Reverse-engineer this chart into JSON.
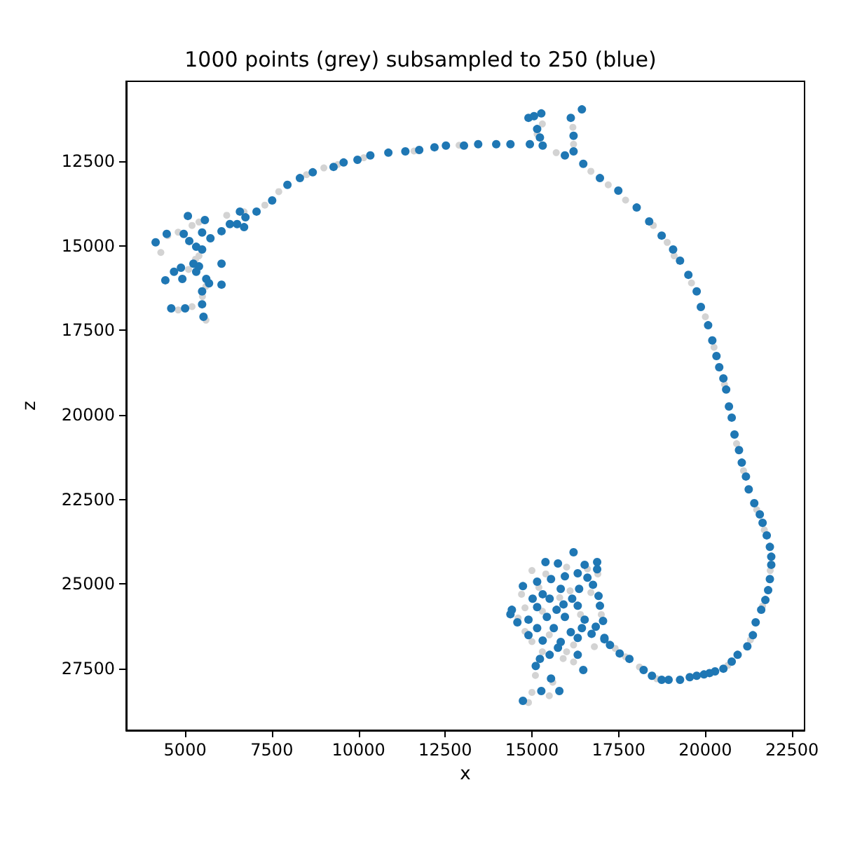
{
  "chart_data": {
    "type": "scatter",
    "title": "1000 points (grey) subsampled to 250 (blue)",
    "xlabel": "x",
    "ylabel": "z",
    "xlim": [
      3300,
      22860
    ],
    "ylim": [
      29320,
      10140
    ],
    "xticks": [
      5000,
      7500,
      10000,
      12500,
      15000,
      17500,
      20000,
      22500
    ],
    "yticks": [
      12500,
      15000,
      17500,
      20000,
      22500,
      25000,
      27500
    ],
    "marker": "circle",
    "series": [
      {
        "color": "#d3d3d3",
        "x": [
          4300,
          4500,
          4800,
          5200,
          5400,
          5300,
          5400,
          5100,
          5600,
          5500,
          5200,
          4800,
          5600,
          6200,
          6700,
          7300,
          7700,
          8500,
          9000,
          9400,
          10150,
          11600,
          12900,
          15300,
          15150,
          16180,
          16200,
          15700,
          16700,
          17200,
          17700,
          18500,
          18900,
          19100,
          19600,
          20000,
          20250,
          20550,
          20900,
          21100,
          21480,
          21700,
          21870,
          21650,
          21300,
          20650,
          18600,
          18100,
          17700,
          17400,
          15000,
          15400,
          16000,
          16600,
          16900,
          15200,
          16100,
          16700,
          14700,
          15300,
          15800,
          16400,
          17000,
          14600,
          14800,
          15500,
          16200,
          16800,
          15000,
          15300,
          15900,
          16200,
          15100,
          15600,
          15000,
          15500,
          14900,
          16000,
          14800
        ],
        "values": [
          15200,
          14700,
          14600,
          14400,
          14300,
          15400,
          15300,
          15700,
          16200,
          16500,
          16800,
          16900,
          17200,
          14100,
          14000,
          13800,
          13400,
          12900,
          12700,
          12600,
          12400,
          12200,
          12030,
          11400,
          11700,
          11500,
          12000,
          12250,
          12800,
          13200,
          13650,
          14400,
          14900,
          15300,
          16100,
          17100,
          18000,
          19100,
          20850,
          21650,
          22800,
          23400,
          24600,
          25650,
          26650,
          27400,
          27800,
          27450,
          27150,
          26900,
          24600,
          24700,
          24500,
          24550,
          24700,
          25100,
          25200,
          25250,
          25300,
          25800,
          25400,
          25900,
          25900,
          26000,
          26400,
          26500,
          26800,
          26850,
          26700,
          27000,
          27200,
          27300,
          27700,
          27900,
          28200,
          28300,
          28500,
          27000,
          25700
        ]
      },
      {
        "color": "#1f77b4",
        "x": [
          4150,
          4470,
          5080,
          5570,
          4960,
          5490,
          5120,
          5320,
          5490,
          5730,
          6050,
          6290,
          6500,
          6700,
          6580,
          6740,
          7060,
          7510,
          7950,
          8310,
          8680,
          9280,
          9570,
          9970,
          10340,
          10860,
          11350,
          11750,
          12190,
          12520,
          5240,
          5400,
          5320,
          4880,
          4680,
          4430,
          4920,
          6050,
          5610,
          5690,
          6050,
          5490,
          5490,
          5530,
          4600,
          5000,
          13040,
          13450,
          13970,
          14380,
          14940,
          15310,
          15230,
          15150,
          14900,
          15060,
          15270,
          15950,
          16120,
          16440,
          16200,
          16200,
          16480,
          16960,
          17490,
          18020,
          18380,
          18740,
          19070,
          19270,
          19510,
          19750,
          19870,
          20080,
          20200,
          20320,
          20400,
          20520,
          20600,
          20680,
          20760,
          20840,
          20970,
          21050,
          21170,
          21250,
          21410,
          21570,
          21650,
          21770,
          21860,
          21900,
          21900,
          21860,
          21810,
          21730,
          21610,
          21450,
          21370,
          21210,
          20930,
          20760,
          20520,
          20280,
          20120,
          19960,
          19750,
          19550,
          19270,
          18940,
          18740,
          18460,
          18220,
          17810,
          17530,
          17250,
          17090,
          16200,
          15390,
          15750,
          16880,
          16520,
          16880,
          14740,
          15150,
          15550,
          15950,
          16320,
          16600,
          16760,
          16360,
          15830,
          15310,
          15020,
          15510,
          16160,
          16920,
          16960,
          16320,
          15910,
          15710,
          15150,
          14420,
          14380,
          14580,
          14900,
          15430,
          15950,
          16520,
          17050,
          16840,
          16440,
          16120,
          15630,
          15150,
          14900,
          15310,
          15830,
          16320,
          16720,
          17090,
          15750,
          15510,
          15230,
          15110,
          16320,
          16480,
          15550,
          15790,
          15270,
          14740
        ],
        "values": [
          14900,
          14650,
          14120,
          14240,
          14650,
          14610,
          14860,
          15030,
          15110,
          14780,
          14570,
          14360,
          14360,
          14450,
          13990,
          14160,
          13990,
          13660,
          13200,
          13000,
          12830,
          12670,
          12540,
          12460,
          12330,
          12250,
          12210,
          12170,
          12090,
          12040,
          15530,
          15610,
          15770,
          15650,
          15770,
          16020,
          15980,
          15530,
          15980,
          16110,
          16150,
          16350,
          16730,
          17100,
          16850,
          16850,
          12040,
          12000,
          12000,
          12000,
          12000,
          12040,
          11800,
          11550,
          11220,
          11170,
          11090,
          12330,
          11220,
          10970,
          11750,
          12210,
          12580,
          13000,
          13370,
          13870,
          14280,
          14700,
          15110,
          15440,
          15860,
          16350,
          16810,
          17350,
          17800,
          18260,
          18590,
          18920,
          19250,
          19750,
          20080,
          20580,
          21040,
          21410,
          21820,
          22200,
          22610,
          22940,
          23190,
          23560,
          23900,
          24190,
          24430,
          24850,
          25180,
          25470,
          25760,
          26130,
          26510,
          26840,
          27090,
          27290,
          27500,
          27580,
          27630,
          27670,
          27710,
          27750,
          27830,
          27830,
          27830,
          27710,
          27540,
          27210,
          27050,
          26800,
          26590,
          24060,
          24350,
          24390,
          24350,
          24430,
          24560,
          25060,
          24930,
          24850,
          24770,
          24680,
          24810,
          25020,
          25140,
          25140,
          25300,
          25430,
          25430,
          25430,
          25350,
          25640,
          25640,
          25600,
          25760,
          25680,
          25760,
          25890,
          26130,
          26050,
          25970,
          25970,
          26050,
          26090,
          26260,
          26300,
          26420,
          26300,
          26300,
          26510,
          26670,
          26710,
          26590,
          26470,
          26630,
          26880,
          27090,
          27210,
          27420,
          27090,
          27540,
          27790,
          28160,
          28160,
          28450
        ]
      }
    ]
  }
}
